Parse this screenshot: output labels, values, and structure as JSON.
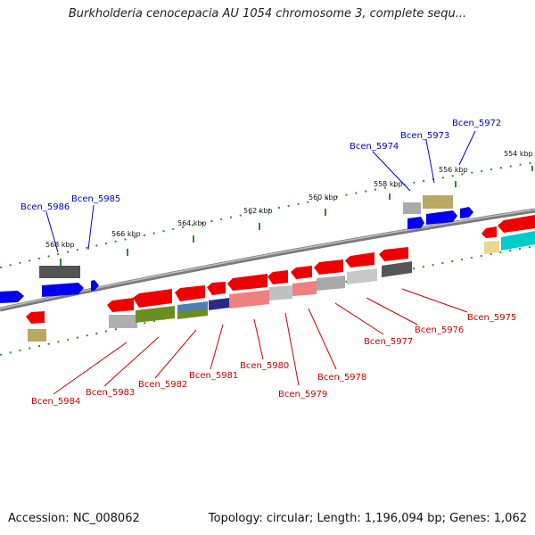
{
  "title": "Burkholderia cenocepacia AU 1054 chromosome 3, complete sequ...",
  "footer": {
    "accession": "Accession: NC_008062",
    "summary": "Topology: circular; Length: 1,196,094 bp; Genes: 1,062"
  },
  "colors": {
    "label_forward": "#0000cc",
    "label_reverse": "#cc0000",
    "backbone": "#7a7a7a",
    "tick": "#2e8b2e"
  },
  "scale_ticks": [
    "554 kbp",
    "556 kbp",
    "558 kbp",
    "560 kbp",
    "562 kbp",
    "564 kbp",
    "566 kbp",
    "568 kbp"
  ],
  "gene_labels": {
    "forward": [
      "Bcen_5972",
      "Bcen_5973",
      "Bcen_5974",
      "Bcen_5985",
      "Bcen_5986"
    ],
    "reverse": [
      "Bcen_5975",
      "Bcen_5976",
      "Bcen_5977",
      "Bcen_5978",
      "Bcen_5979",
      "Bcen_5980",
      "Bcen_5981",
      "Bcen_5982",
      "Bcen_5983",
      "Bcen_5984"
    ]
  }
}
